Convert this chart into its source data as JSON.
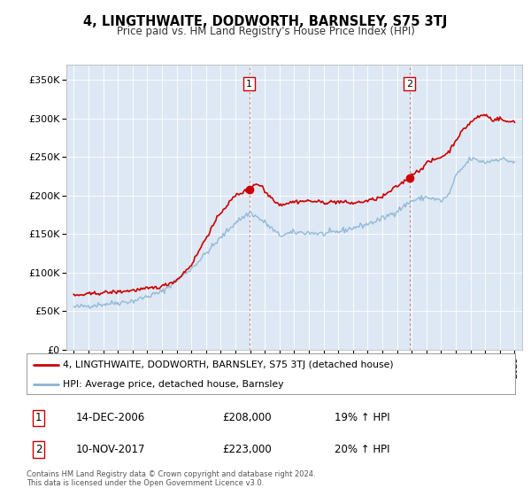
{
  "title": "4, LINGTHWAITE, DODWORTH, BARNSLEY, S75 3TJ",
  "subtitle": "Price paid vs. HM Land Registry's House Price Index (HPI)",
  "legend_line1": "4, LINGTHWAITE, DODWORTH, BARNSLEY, S75 3TJ (detached house)",
  "legend_line2": "HPI: Average price, detached house, Barnsley",
  "annotation1_label": "1",
  "annotation1_date": "14-DEC-2006",
  "annotation1_price": "£208,000",
  "annotation1_hpi": "19% ↑ HPI",
  "annotation2_label": "2",
  "annotation2_date": "10-NOV-2017",
  "annotation2_price": "£223,000",
  "annotation2_hpi": "20% ↑ HPI",
  "footer": "Contains HM Land Registry data © Crown copyright and database right 2024.\nThis data is licensed under the Open Government Licence v3.0.",
  "price_color": "#cc0000",
  "hpi_color": "#8ab4d4",
  "background_color": "#dde8f4",
  "marker1_x": 2006.95,
  "marker1_y": 208000,
  "marker2_x": 2017.85,
  "marker2_y": 223000,
  "vline1_x": 2006.95,
  "vline2_x": 2017.85,
  "ylim": [
    0,
    370000
  ],
  "xlim": [
    1994.5,
    2025.5
  ]
}
